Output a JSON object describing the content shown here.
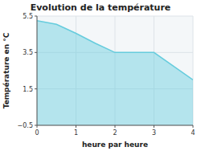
{
  "chart_data": {
    "type": "area",
    "title": "Evolution de la température",
    "x_label": "heure par heure",
    "y_label": "Température en °C",
    "x": [
      0,
      0.5,
      1.0,
      1.5,
      2.0,
      3.0,
      4.0
    ],
    "values": [
      5.25,
      5.05,
      4.55,
      4.0,
      3.5,
      3.5,
      2.0
    ],
    "color": "#66ccdd",
    "xlim": [
      0,
      4
    ],
    "ylim": [
      -0.5,
      5.5
    ],
    "xticks": [
      0,
      1,
      2,
      3,
      4
    ],
    "yticks": [
      -0.5,
      1.5,
      3.5,
      5.5
    ],
    "grid": true
  }
}
